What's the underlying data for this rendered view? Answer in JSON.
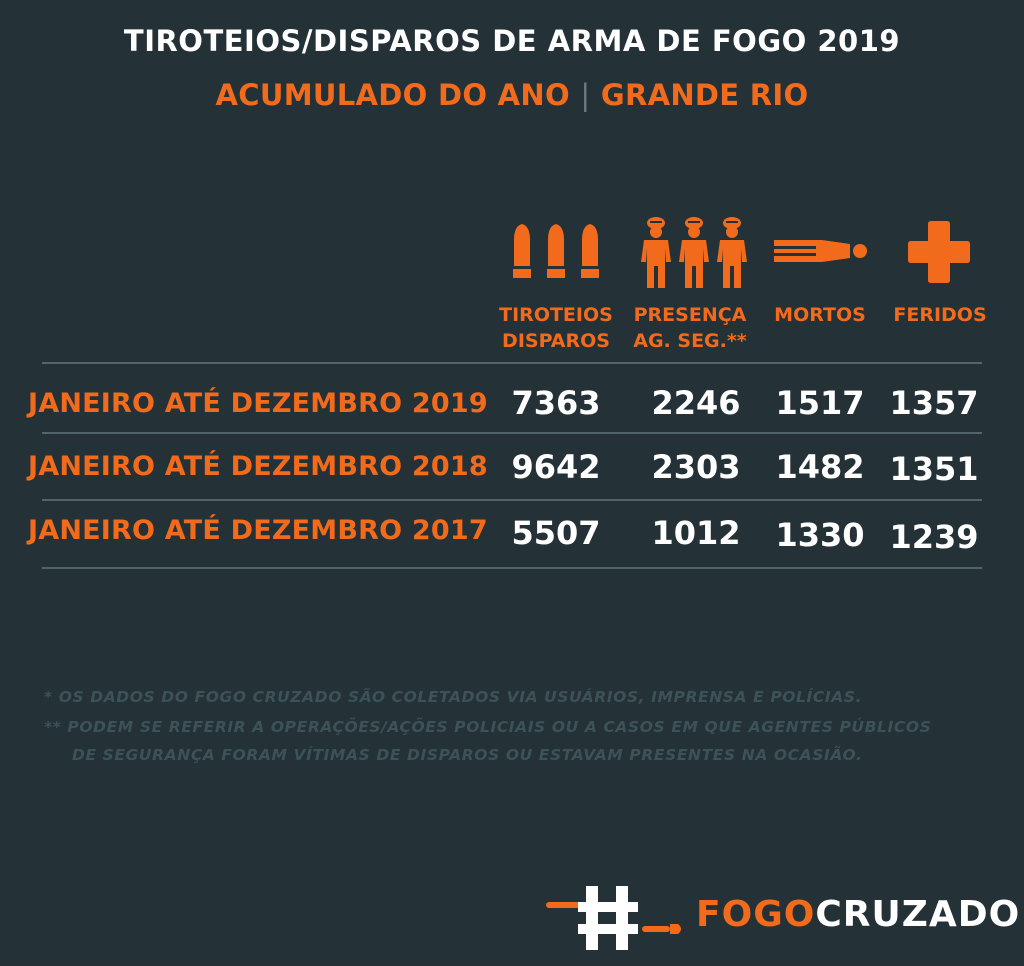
{
  "header": {
    "title": "TIROTEIOS/DISPAROS DE ARMA DE FOGO 2019",
    "subtitle_left": "ACUMULADO DO ANO",
    "subtitle_sep": "|",
    "subtitle_right": "GRANDE RIO"
  },
  "columns": [
    {
      "icon": "bullets-icon",
      "line1": "TIROTEIOS",
      "line2": "DISPAROS"
    },
    {
      "icon": "police-officers-icon",
      "line1": "PRESENÇA",
      "line2": "AG. SEG.**"
    },
    {
      "icon": "dead-person-icon",
      "line1": "MORTOS",
      "line2": ""
    },
    {
      "icon": "medical-cross-icon",
      "line1": "FERIDOS",
      "line2": ""
    }
  ],
  "rows": [
    {
      "label": "JANEIRO ATÉ DEZEMBRO 2019",
      "values": [
        "7363",
        "2246",
        "1517",
        "1357"
      ]
    },
    {
      "label": "JANEIRO ATÉ DEZEMBRO 2018",
      "values": [
        "9642",
        "2303",
        "1482",
        "1351"
      ]
    },
    {
      "label": "JANEIRO ATÉ DEZEMBRO 2017",
      "values": [
        "5507",
        "1012",
        "1330",
        "1239"
      ]
    }
  ],
  "notes": {
    "line1": "*   OS DADOS DO FOGO CRUZADO SÃO COLETADOS VIA USUÁRIOS, IMPRENSA E POLÍCIAS.",
    "line2": "** PODEM SE REFERIR A OPERAÇÕES/AÇÕES POLICIAIS OU A CASOS EM QUE AGENTES PÚBLICOS",
    "line3": "DE SEGURANÇA FORAM VÍTIMAS DE DISPAROS OU ESTAVAM PRESENTES NA OCASIÃO."
  },
  "logo": {
    "icon": "hashtag-bullet-logo",
    "text_orange": "FOGO",
    "text_white": "CRUZADO"
  },
  "colors": {
    "background": "#243136",
    "accent": "#f26b1d",
    "text": "#ffffff",
    "note": "#3d5257",
    "rule": "#51646a"
  }
}
